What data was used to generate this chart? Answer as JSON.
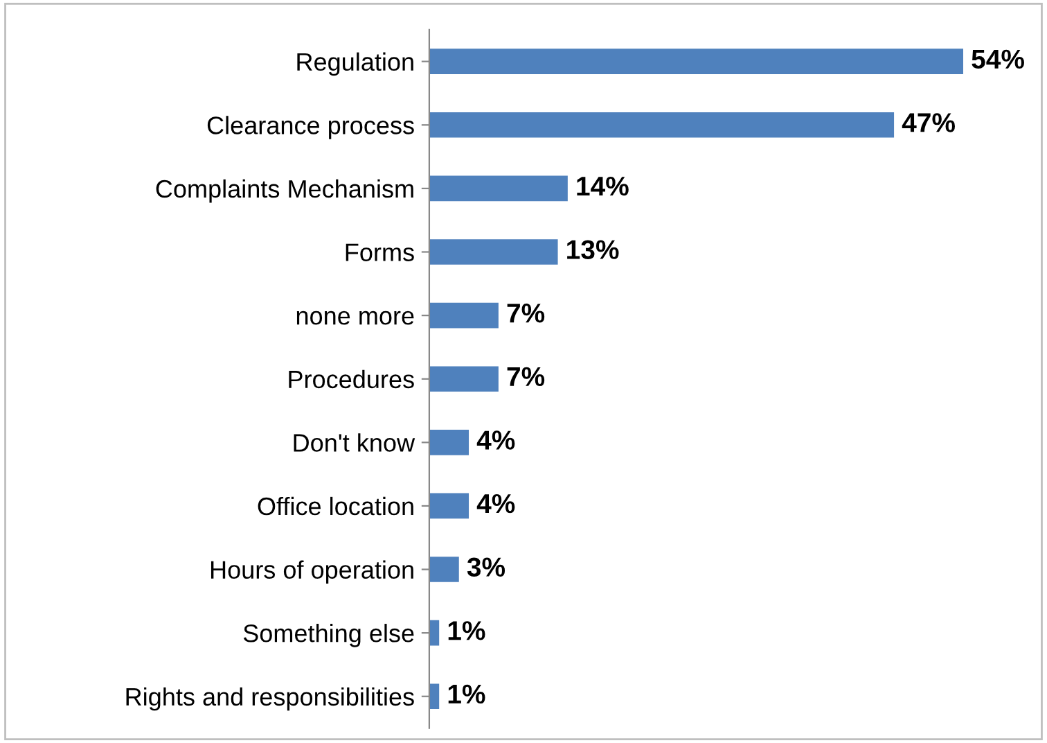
{
  "chart_data": {
    "type": "bar",
    "orientation": "horizontal",
    "categories": [
      "Regulation",
      "Clearance process",
      "Complaints Mechanism",
      "Forms",
      "none more",
      "Procedures",
      "Don't know",
      "Office location",
      "Hours of operation",
      "Something else",
      "Rights and responsibilities"
    ],
    "values": [
      54,
      47,
      14,
      13,
      7,
      7,
      4,
      4,
      3,
      1,
      1
    ],
    "value_labels": [
      "54%",
      "47%",
      "14%",
      "13%",
      "7%",
      "7%",
      "4%",
      "4%",
      "3%",
      "1%",
      "1%"
    ],
    "color": "#4f81bd",
    "grid": false,
    "legend": false
  }
}
